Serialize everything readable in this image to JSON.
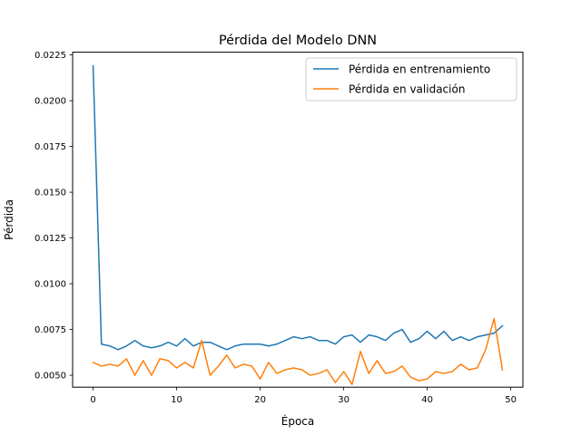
{
  "chart_data": {
    "type": "line",
    "title": "Pérdida del Modelo DNN",
    "xlabel": "Época",
    "ylabel": "Pérdida",
    "xlim": [
      -2.45,
      51.45
    ],
    "ylim": [
      0.00435,
      0.02265
    ],
    "xticks": [
      0,
      10,
      20,
      30,
      40,
      50
    ],
    "xtick_labels": [
      "0",
      "10",
      "20",
      "30",
      "40",
      "50"
    ],
    "yticks": [
      0.005,
      0.0075,
      0.01,
      0.0125,
      0.015,
      0.0175,
      0.02,
      0.0225
    ],
    "ytick_labels": [
      "0.0050",
      "0.0075",
      "0.0100",
      "0.0125",
      "0.0150",
      "0.0175",
      "0.0200",
      "0.0225"
    ],
    "grid": false,
    "legend_position": "top-right",
    "x": [
      0,
      1,
      2,
      3,
      4,
      5,
      6,
      7,
      8,
      9,
      10,
      11,
      12,
      13,
      14,
      15,
      16,
      17,
      18,
      19,
      20,
      21,
      22,
      23,
      24,
      25,
      26,
      27,
      28,
      29,
      30,
      31,
      32,
      33,
      34,
      35,
      36,
      37,
      38,
      39,
      40,
      41,
      42,
      43,
      44,
      45,
      46,
      47,
      48,
      49
    ],
    "series": [
      {
        "name": "Pérdida en entrenamiento",
        "color": "#1f77b4",
        "values": [
          0.0219,
          0.0067,
          0.0066,
          0.0064,
          0.0066,
          0.0069,
          0.0066,
          0.0065,
          0.0066,
          0.0068,
          0.0066,
          0.007,
          0.0066,
          0.0068,
          0.0068,
          0.0066,
          0.0064,
          0.0066,
          0.0067,
          0.0067,
          0.0067,
          0.0066,
          0.0067,
          0.0069,
          0.0071,
          0.007,
          0.0071,
          0.0069,
          0.0069,
          0.0067,
          0.0071,
          0.0072,
          0.0068,
          0.0072,
          0.0071,
          0.0069,
          0.0073,
          0.0075,
          0.0068,
          0.007,
          0.0074,
          0.007,
          0.0074,
          0.0069,
          0.0071,
          0.0069,
          0.0071,
          0.0072,
          0.0073,
          0.0077
        ]
      },
      {
        "name": "Pérdida en validación",
        "color": "#ff7f0e",
        "values": [
          0.0057,
          0.0055,
          0.0056,
          0.0055,
          0.0059,
          0.005,
          0.0058,
          0.005,
          0.0059,
          0.0058,
          0.0054,
          0.0057,
          0.0054,
          0.0069,
          0.005,
          0.0055,
          0.0061,
          0.0054,
          0.0056,
          0.0055,
          0.0048,
          0.0057,
          0.0051,
          0.0053,
          0.0054,
          0.0053,
          0.005,
          0.0051,
          0.0053,
          0.0046,
          0.0052,
          0.0045,
          0.0063,
          0.0051,
          0.0058,
          0.0051,
          0.0052,
          0.0055,
          0.0049,
          0.0047,
          0.0048,
          0.0052,
          0.0051,
          0.0052,
          0.0056,
          0.0053,
          0.0054,
          0.0064,
          0.0081,
          0.0053
        ]
      }
    ]
  }
}
